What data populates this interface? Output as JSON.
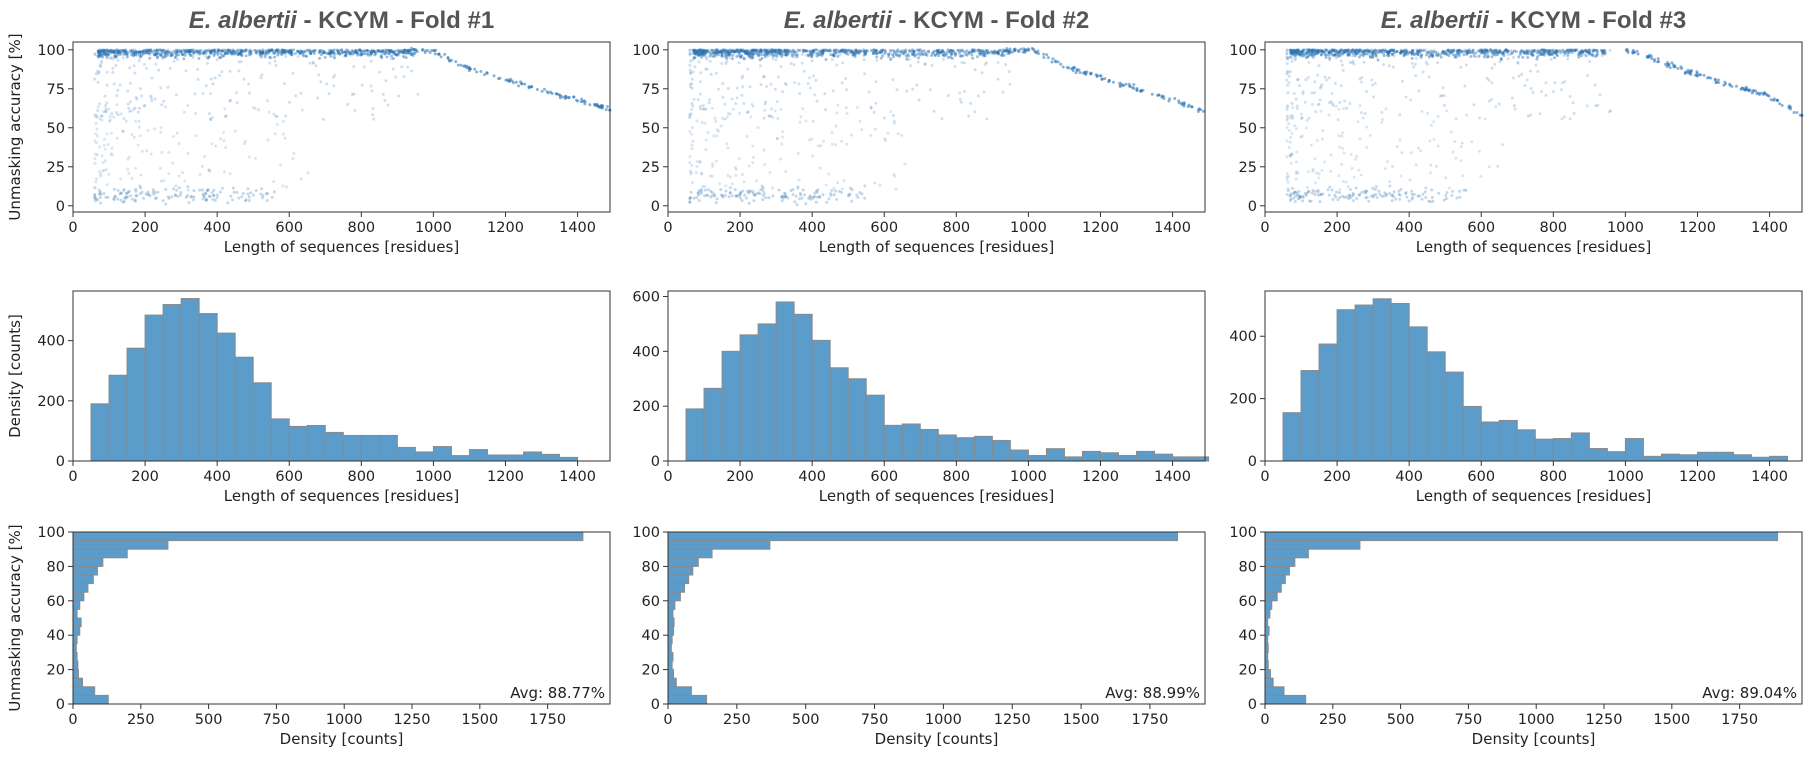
{
  "labels": {
    "acc_axis": "Unmasking accuracy [%]",
    "len_axis": "Length of sequences [residues]",
    "density_axis": "Density [counts]"
  },
  "colors": {
    "bar": "#5b9ccb",
    "edge": "#8a8a8a",
    "point": "#2a73b4"
  },
  "chart_data": [
    {
      "type": "scatter",
      "panel": "fold1-scatter",
      "title_species": "E. albertii",
      "title_rest": " - KCYM - Fold #1",
      "xlabel": "Length of sequences [residues]",
      "ylabel": "Unmasking accuracy [%]",
      "xlim": [
        0,
        1490
      ],
      "ylim": [
        -4,
        105
      ],
      "xticks": [
        0,
        200,
        400,
        600,
        800,
        1000,
        1200,
        1400
      ],
      "yticks": [
        0,
        25,
        50,
        75,
        100
      ],
      "trend": [
        [
          920,
          100
        ],
        [
          1000,
          99
        ],
        [
          1100,
          88
        ],
        [
          1200,
          81
        ],
        [
          1300,
          74
        ],
        [
          1400,
          68
        ],
        [
          1490,
          62
        ]
      ]
    },
    {
      "type": "bar",
      "panel": "fold1-length-hist",
      "xlabel": "Length of sequences [residues]",
      "ylabel": "Density [counts]",
      "xlim": [
        0,
        1490
      ],
      "ylim": [
        0,
        565
      ],
      "xticks": [
        0,
        200,
        400,
        600,
        800,
        1000,
        1200,
        1400
      ],
      "yticks": [
        0,
        200,
        400
      ],
      "bin_start": 50,
      "bin_width": 50,
      "values": [
        190,
        285,
        375,
        485,
        520,
        540,
        490,
        425,
        345,
        260,
        140,
        115,
        118,
        95,
        85,
        85,
        85,
        45,
        30,
        48,
        18,
        38,
        20,
        20,
        30,
        22,
        12
      ]
    },
    {
      "type": "barh",
      "panel": "fold1-accuracy-hist",
      "xlabel": "Density [counts]",
      "ylabel": "Unmasking accuracy [%]",
      "xlim": [
        0,
        1980
      ],
      "ylim": [
        0,
        100
      ],
      "xticks": [
        0,
        250,
        500,
        750,
        1000,
        1250,
        1500,
        1750
      ],
      "yticks": [
        0,
        20,
        40,
        60,
        80,
        100
      ],
      "bin_start": 0,
      "bin_width": 5,
      "values": [
        130,
        80,
        35,
        20,
        18,
        15,
        12,
        15,
        25,
        30,
        15,
        25,
        40,
        55,
        75,
        90,
        110,
        200,
        350,
        1880
      ],
      "annotation": "Avg: 88.77%"
    },
    {
      "type": "scatter",
      "panel": "fold2-scatter",
      "title_species": "E. albertii",
      "title_rest": " - KCYM - Fold #2",
      "xlabel": "Length of sequences [residues]",
      "ylabel": "",
      "xlim": [
        0,
        1490
      ],
      "ylim": [
        -4,
        105
      ],
      "xticks": [
        0,
        200,
        400,
        600,
        800,
        1000,
        1200,
        1400
      ],
      "yticks": [
        0,
        25,
        50,
        75,
        100
      ],
      "trend": [
        [
          940,
          100
        ],
        [
          1020,
          99
        ],
        [
          1100,
          90
        ],
        [
          1200,
          82
        ],
        [
          1300,
          75
        ],
        [
          1400,
          68
        ],
        [
          1490,
          60
        ]
      ]
    },
    {
      "type": "bar",
      "panel": "fold2-length-hist",
      "xlabel": "Length of sequences [residues]",
      "ylabel": "",
      "xlim": [
        0,
        1490
      ],
      "ylim": [
        0,
        620
      ],
      "xticks": [
        0,
        200,
        400,
        600,
        800,
        1000,
        1200,
        1400
      ],
      "yticks": [
        0,
        200,
        400,
        600
      ],
      "bin_start": 50,
      "bin_width": 50,
      "values": [
        190,
        265,
        400,
        460,
        500,
        580,
        535,
        440,
        340,
        300,
        240,
        130,
        135,
        115,
        95,
        85,
        90,
        75,
        40,
        20,
        45,
        15,
        35,
        30,
        20,
        35,
        25,
        15,
        15
      ]
    },
    {
      "type": "barh",
      "panel": "fold2-accuracy-hist",
      "xlabel": "Density [counts]",
      "ylabel": "",
      "xlim": [
        0,
        1950
      ],
      "ylim": [
        0,
        100
      ],
      "xticks": [
        0,
        250,
        500,
        750,
        1000,
        1250,
        1500,
        1750
      ],
      "yticks": [
        0,
        20,
        40,
        60,
        80,
        100
      ],
      "bin_start": 0,
      "bin_width": 5,
      "values": [
        140,
        85,
        30,
        20,
        15,
        18,
        12,
        15,
        20,
        22,
        18,
        25,
        45,
        60,
        75,
        90,
        110,
        160,
        370,
        1850
      ],
      "annotation": "Avg: 88.99%"
    },
    {
      "type": "scatter",
      "panel": "fold3-scatter",
      "title_species": "E. albertii",
      "title_rest": " - KCYM - Fold #3",
      "xlabel": "Length of sequences [residues]",
      "ylabel": "",
      "xlim": [
        0,
        1490
      ],
      "ylim": [
        -4,
        105
      ],
      "xticks": [
        0,
        200,
        400,
        600,
        800,
        1000,
        1200,
        1400
      ],
      "yticks": [
        0,
        25,
        50,
        75,
        100
      ],
      "trend": [
        [
          1000,
          100
        ],
        [
          1040,
          98
        ],
        [
          1100,
          92
        ],
        [
          1200,
          84
        ],
        [
          1300,
          77
        ],
        [
          1400,
          70
        ],
        [
          1490,
          58
        ]
      ]
    },
    {
      "type": "bar",
      "panel": "fold3-length-hist",
      "xlabel": "Length of sequences [residues]",
      "ylabel": "",
      "xlim": [
        0,
        1490
      ],
      "ylim": [
        0,
        545
      ],
      "xticks": [
        0,
        200,
        400,
        600,
        800,
        1000,
        1200,
        1400
      ],
      "yticks": [
        0,
        200,
        400
      ],
      "bin_start": 50,
      "bin_width": 50,
      "values": [
        155,
        290,
        375,
        485,
        500,
        520,
        505,
        430,
        350,
        285,
        175,
        125,
        130,
        100,
        70,
        72,
        90,
        40,
        30,
        72,
        15,
        22,
        20,
        28,
        28,
        20,
        12,
        15
      ]
    },
    {
      "type": "barh",
      "panel": "fold3-accuracy-hist",
      "xlabel": "Density [counts]",
      "ylabel": "",
      "xlim": [
        0,
        1980
      ],
      "ylim": [
        0,
        100
      ],
      "xticks": [
        0,
        250,
        500,
        750,
        1000,
        1250,
        1500,
        1750
      ],
      "yticks": [
        0,
        20,
        40,
        60,
        80,
        100
      ],
      "bin_start": 0,
      "bin_width": 5,
      "values": [
        150,
        70,
        30,
        20,
        12,
        10,
        12,
        10,
        15,
        10,
        18,
        25,
        45,
        60,
        75,
        90,
        110,
        160,
        350,
        1890
      ],
      "annotation": "Avg: 89.04%"
    }
  ]
}
